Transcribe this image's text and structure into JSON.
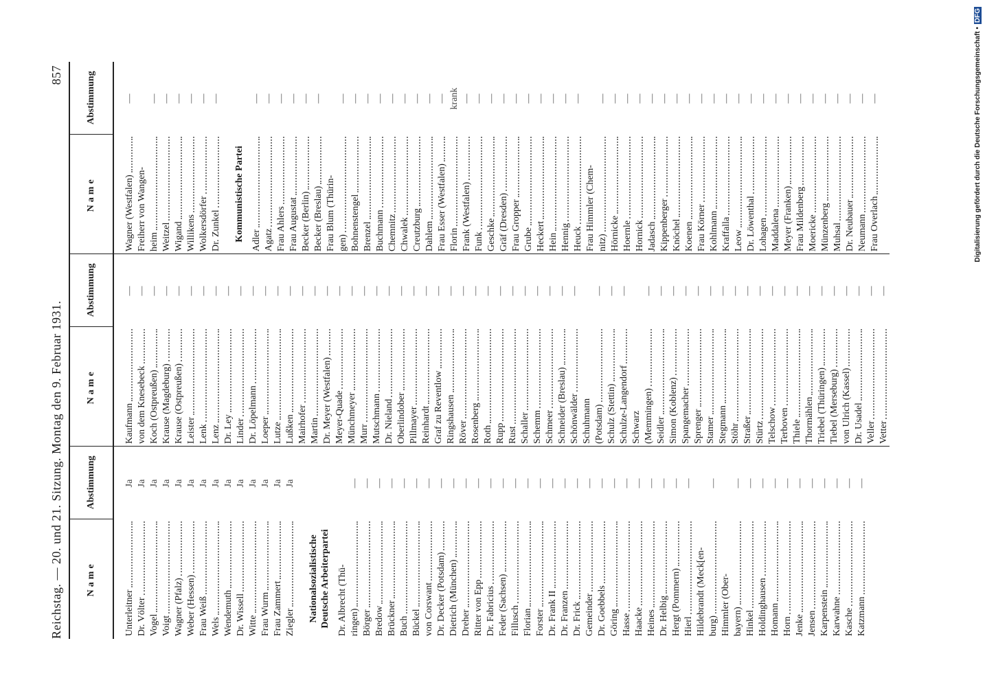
{
  "header": {
    "title": "Reichstag. — 20. und 21. Sitzung. Montag den 9. Februar 1931.",
    "page": "857"
  },
  "footer": {
    "text": "Digitalisierung gefördert durch die Deutsche Forschungsgemeinschaft •",
    "logo": "DFG"
  },
  "columns": [
    {
      "head_name": "Name",
      "head_vote": "Abstimmung",
      "rows": [
        [
          "Unterleitner",
          "Ja"
        ],
        [
          "Dr. Völter",
          "Ja"
        ],
        [
          "Vogel",
          "Ja"
        ],
        [
          "Voigt",
          "Ja"
        ],
        [
          "Wagner (Pfalz)",
          "Ja"
        ],
        [
          "Weber (Hessen)",
          "Ja"
        ],
        [
          "Frau Weiß",
          "Ja"
        ],
        [
          "Wels",
          "Ja"
        ],
        [
          "Wendemuth",
          "Ja"
        ],
        [
          "Dr. Wissell",
          "Ja"
        ],
        [
          "Witte",
          "Ja"
        ],
        [
          "Frau Wurm",
          "Ja"
        ],
        [
          "Frau Zammert",
          "Ja"
        ],
        [
          "Ziegler",
          "Ja"
        ],
        {
          "party": [
            "Nationalsozialistische",
            "Deutsche Arbeiterpartei"
          ]
        },
        [
          [
            "Dr. Albrecht (Thü-",
            "ringen)"
          ],
          "—"
        ],
        [
          "Börger",
          "—"
        ],
        [
          "Bredow",
          "—"
        ],
        [
          "Brückner",
          "—"
        ],
        [
          "Buch",
          "—"
        ],
        [
          "Bückel",
          "—"
        ],
        [
          "von Corswant",
          "—"
        ],
        [
          "Dr. Decker (Potsdam)",
          "—"
        ],
        [
          "Dietrich (München)",
          "—"
        ],
        [
          "Dreher",
          "—"
        ],
        [
          "Ritter von Epp",
          "—"
        ],
        [
          "Dr. Fabricius",
          "—"
        ],
        [
          "Feder (Sachsen)",
          "—"
        ],
        [
          "Fillusch",
          "—"
        ],
        [
          "Florian",
          "—"
        ],
        [
          "Forster",
          "—"
        ],
        [
          "Dr. Frank II",
          "—"
        ],
        [
          "Dr. Franzen",
          "—"
        ],
        [
          "Dr. Frick",
          "—"
        ],
        [
          "Gemeinder",
          "—"
        ],
        [
          "Dr. Goebbels",
          "—"
        ],
        [
          "Göring",
          "—"
        ],
        [
          "Hasse",
          "—"
        ],
        [
          "Haacke",
          "—"
        ],
        [
          "Heines",
          "—"
        ],
        [
          "Dr. Helbig",
          "—"
        ],
        [
          "Hergt (Pommern)",
          "—"
        ],
        [
          "Hierl",
          "—"
        ],
        [
          [
            "Hildebrandt (Meck[en-",
            "burg)"
          ],
          "—"
        ],
        [
          [
            "Himmler (Ober-",
            "bayern)"
          ],
          "—"
        ],
        [
          "Hinkel",
          "—"
        ],
        [
          "Holdinghausen",
          "—"
        ],
        [
          "Homann",
          "—"
        ],
        [
          "Horn",
          "—"
        ],
        [
          "Jenke",
          "—"
        ],
        [
          "Jensen",
          "—"
        ],
        [
          "Karpenstein",
          "—"
        ],
        [
          "Karwahne",
          "—"
        ],
        [
          "Kasche",
          "—"
        ],
        [
          "Katzmann",
          "—"
        ]
      ]
    },
    {
      "head_name": "Name",
      "head_vote": "Abstimmung",
      "rows": [
        [
          "Kaufmann",
          "—"
        ],
        [
          "von dem Knesebeck",
          "—"
        ],
        [
          "Koch (Ostpreußen)",
          "—"
        ],
        [
          "Krause (Magdeburg)",
          "—"
        ],
        [
          "Krause (Ostpreußen)",
          "—"
        ],
        [
          "Leister",
          "—"
        ],
        [
          "Lenk",
          "—"
        ],
        [
          "Lenz",
          "—"
        ],
        [
          "Dr. Ley",
          "—"
        ],
        [
          "Linder",
          "—"
        ],
        [
          "Dr. Löpelmann",
          "—"
        ],
        [
          "Loeper",
          "—"
        ],
        [
          "Lutze",
          "—"
        ],
        [
          "Lußken",
          "—"
        ],
        [
          "Mairhofer",
          "—"
        ],
        [
          "Martin",
          "—"
        ],
        [
          "Dr. Meyer (Westfalen)",
          "—"
        ],
        [
          "Meyer-Quade",
          "—"
        ],
        [
          "Münchmeyer",
          "—"
        ],
        [
          "Murr",
          "—"
        ],
        [
          "Mutschmann",
          "—"
        ],
        [
          "Dr. Nieland",
          "—"
        ],
        [
          "Oberlindober",
          "—"
        ],
        [
          "Pillmayer",
          "—"
        ],
        [
          "Reinhardt",
          "—"
        ],
        [
          "Graf zu Reventlow",
          "—"
        ],
        [
          "Ringshausen",
          "—"
        ],
        [
          "Röver",
          "—"
        ],
        [
          "Rosenberg",
          "—"
        ],
        [
          "Roth",
          "—"
        ],
        [
          "Rupp",
          "—"
        ],
        [
          "Rust",
          "—"
        ],
        [
          "Schaller",
          "—"
        ],
        [
          "Schemm",
          "—"
        ],
        [
          "Schmeer",
          "—"
        ],
        [
          "Schneider (Breslau)",
          "—"
        ],
        [
          "Schönwälder",
          "—"
        ],
        [
          [
            "Schuhmann",
            "(Potsdam)"
          ],
          "—"
        ],
        [
          "Schulz (Stettin)",
          "—"
        ],
        [
          "Schulze-Langendorf",
          "—"
        ],
        [
          [
            "Schwarz",
            "(Memmingen)"
          ],
          "—"
        ],
        [
          "Seidler",
          "—"
        ],
        [
          "Simon (Koblenz)",
          "—"
        ],
        [
          "Spangemacher",
          "—"
        ],
        [
          "Sprenger",
          "—"
        ],
        [
          "Stamer",
          "—"
        ],
        [
          "Stegmann",
          "—"
        ],
        [
          "Stöhr",
          "—"
        ],
        [
          "Straßer",
          "—"
        ],
        [
          "Stürtz",
          "—"
        ],
        [
          "Telschow",
          "—"
        ],
        [
          "Terboven",
          "—"
        ],
        [
          "Thiele",
          "—"
        ],
        [
          "Thormählen",
          "—"
        ],
        [
          "Triebel (Thüringen)",
          "—"
        ],
        [
          "Tiebel (Merseburg)",
          "—"
        ],
        [
          "von Ulrich (Kassel)",
          "—"
        ],
        [
          "Dr. Usadel",
          "—"
        ],
        [
          "Veller",
          "—"
        ],
        [
          "Vetter",
          "—"
        ]
      ]
    },
    {
      "head_name": "Name",
      "head_vote": "Abstimmung",
      "rows": [
        [
          "Wagner (Westfalen)",
          "—"
        ],
        [
          [
            "Freiherr von Wangen-",
            "heim"
          ],
          "—"
        ],
        [
          "Weitzel",
          "—"
        ],
        [
          "Wigand",
          "—"
        ],
        [
          "Willikens",
          "—"
        ],
        [
          "Wolkersdörfer",
          "—"
        ],
        [
          "Dr. Zunkel",
          "—"
        ],
        {
          "party": [
            "Kommunistische Partei"
          ]
        },
        [
          "Adler",
          "—"
        ],
        [
          "Agatz",
          "—"
        ],
        [
          "Frau Ahlers",
          "—"
        ],
        [
          "Frau Augustat",
          "—"
        ],
        [
          "Becker (Berlin)",
          "—"
        ],
        [
          "Becker (Breslau)",
          "—"
        ],
        [
          [
            "Frau Blum (Thürin-",
            "gen)"
          ],
          "—"
        ],
        [
          "Bohnenstengel",
          "—"
        ],
        [
          "Brenzel",
          "—"
        ],
        [
          "Buchmann",
          "—"
        ],
        [
          "Chemnitz",
          "—"
        ],
        [
          "Chwalek",
          "—"
        ],
        [
          "Creutzburg",
          "—"
        ],
        [
          "Dahlem",
          "—"
        ],
        [
          "Frau Esser (Westfalen)",
          "—"
        ],
        [
          "Florin",
          "krank"
        ],
        [
          "Frank (Westfalen)",
          "—"
        ],
        [
          "Funk",
          "—"
        ],
        [
          "Geschke",
          "—"
        ],
        [
          "Gräf (Dresden)",
          "—"
        ],
        [
          "Frau Gropper",
          "—"
        ],
        [
          "Grube",
          "—"
        ],
        [
          "Heckert",
          "—"
        ],
        [
          "Hein",
          "—"
        ],
        [
          "Hennig",
          "—"
        ],
        [
          "Heuck",
          "—"
        ],
        [
          [
            "Frau Himmler (Chem-",
            "nitz)"
          ],
          "—"
        ],
        [
          "Hörnicke",
          "—"
        ],
        [
          "Hoernle",
          "—"
        ],
        [
          "Hornick",
          "—"
        ],
        [
          "Jadasch",
          "—"
        ],
        [
          "Kippenberger",
          "—"
        ],
        [
          "Knöchel",
          "—"
        ],
        [
          "Koenen",
          "—"
        ],
        [
          "Frau Körner",
          "—"
        ],
        [
          "Kohlmann",
          "—"
        ],
        [
          "Kraffalla",
          "—"
        ],
        [
          "Leow",
          "—"
        ],
        [
          "Dr. Löwenthal",
          "—"
        ],
        [
          "Lohagen",
          "—"
        ],
        [
          "Maddalena",
          "—"
        ],
        [
          "Meyer (Franken)",
          "—"
        ],
        [
          "Frau Mildenberg",
          "—"
        ],
        [
          "Moericke",
          "—"
        ],
        [
          "Münzenberg",
          "—"
        ],
        [
          "Muhsal",
          "—"
        ],
        [
          "Dr. Neubauer",
          "—"
        ],
        [
          "Neumann",
          "—"
        ],
        [
          "Frau Overlach",
          "—"
        ]
      ]
    }
  ]
}
